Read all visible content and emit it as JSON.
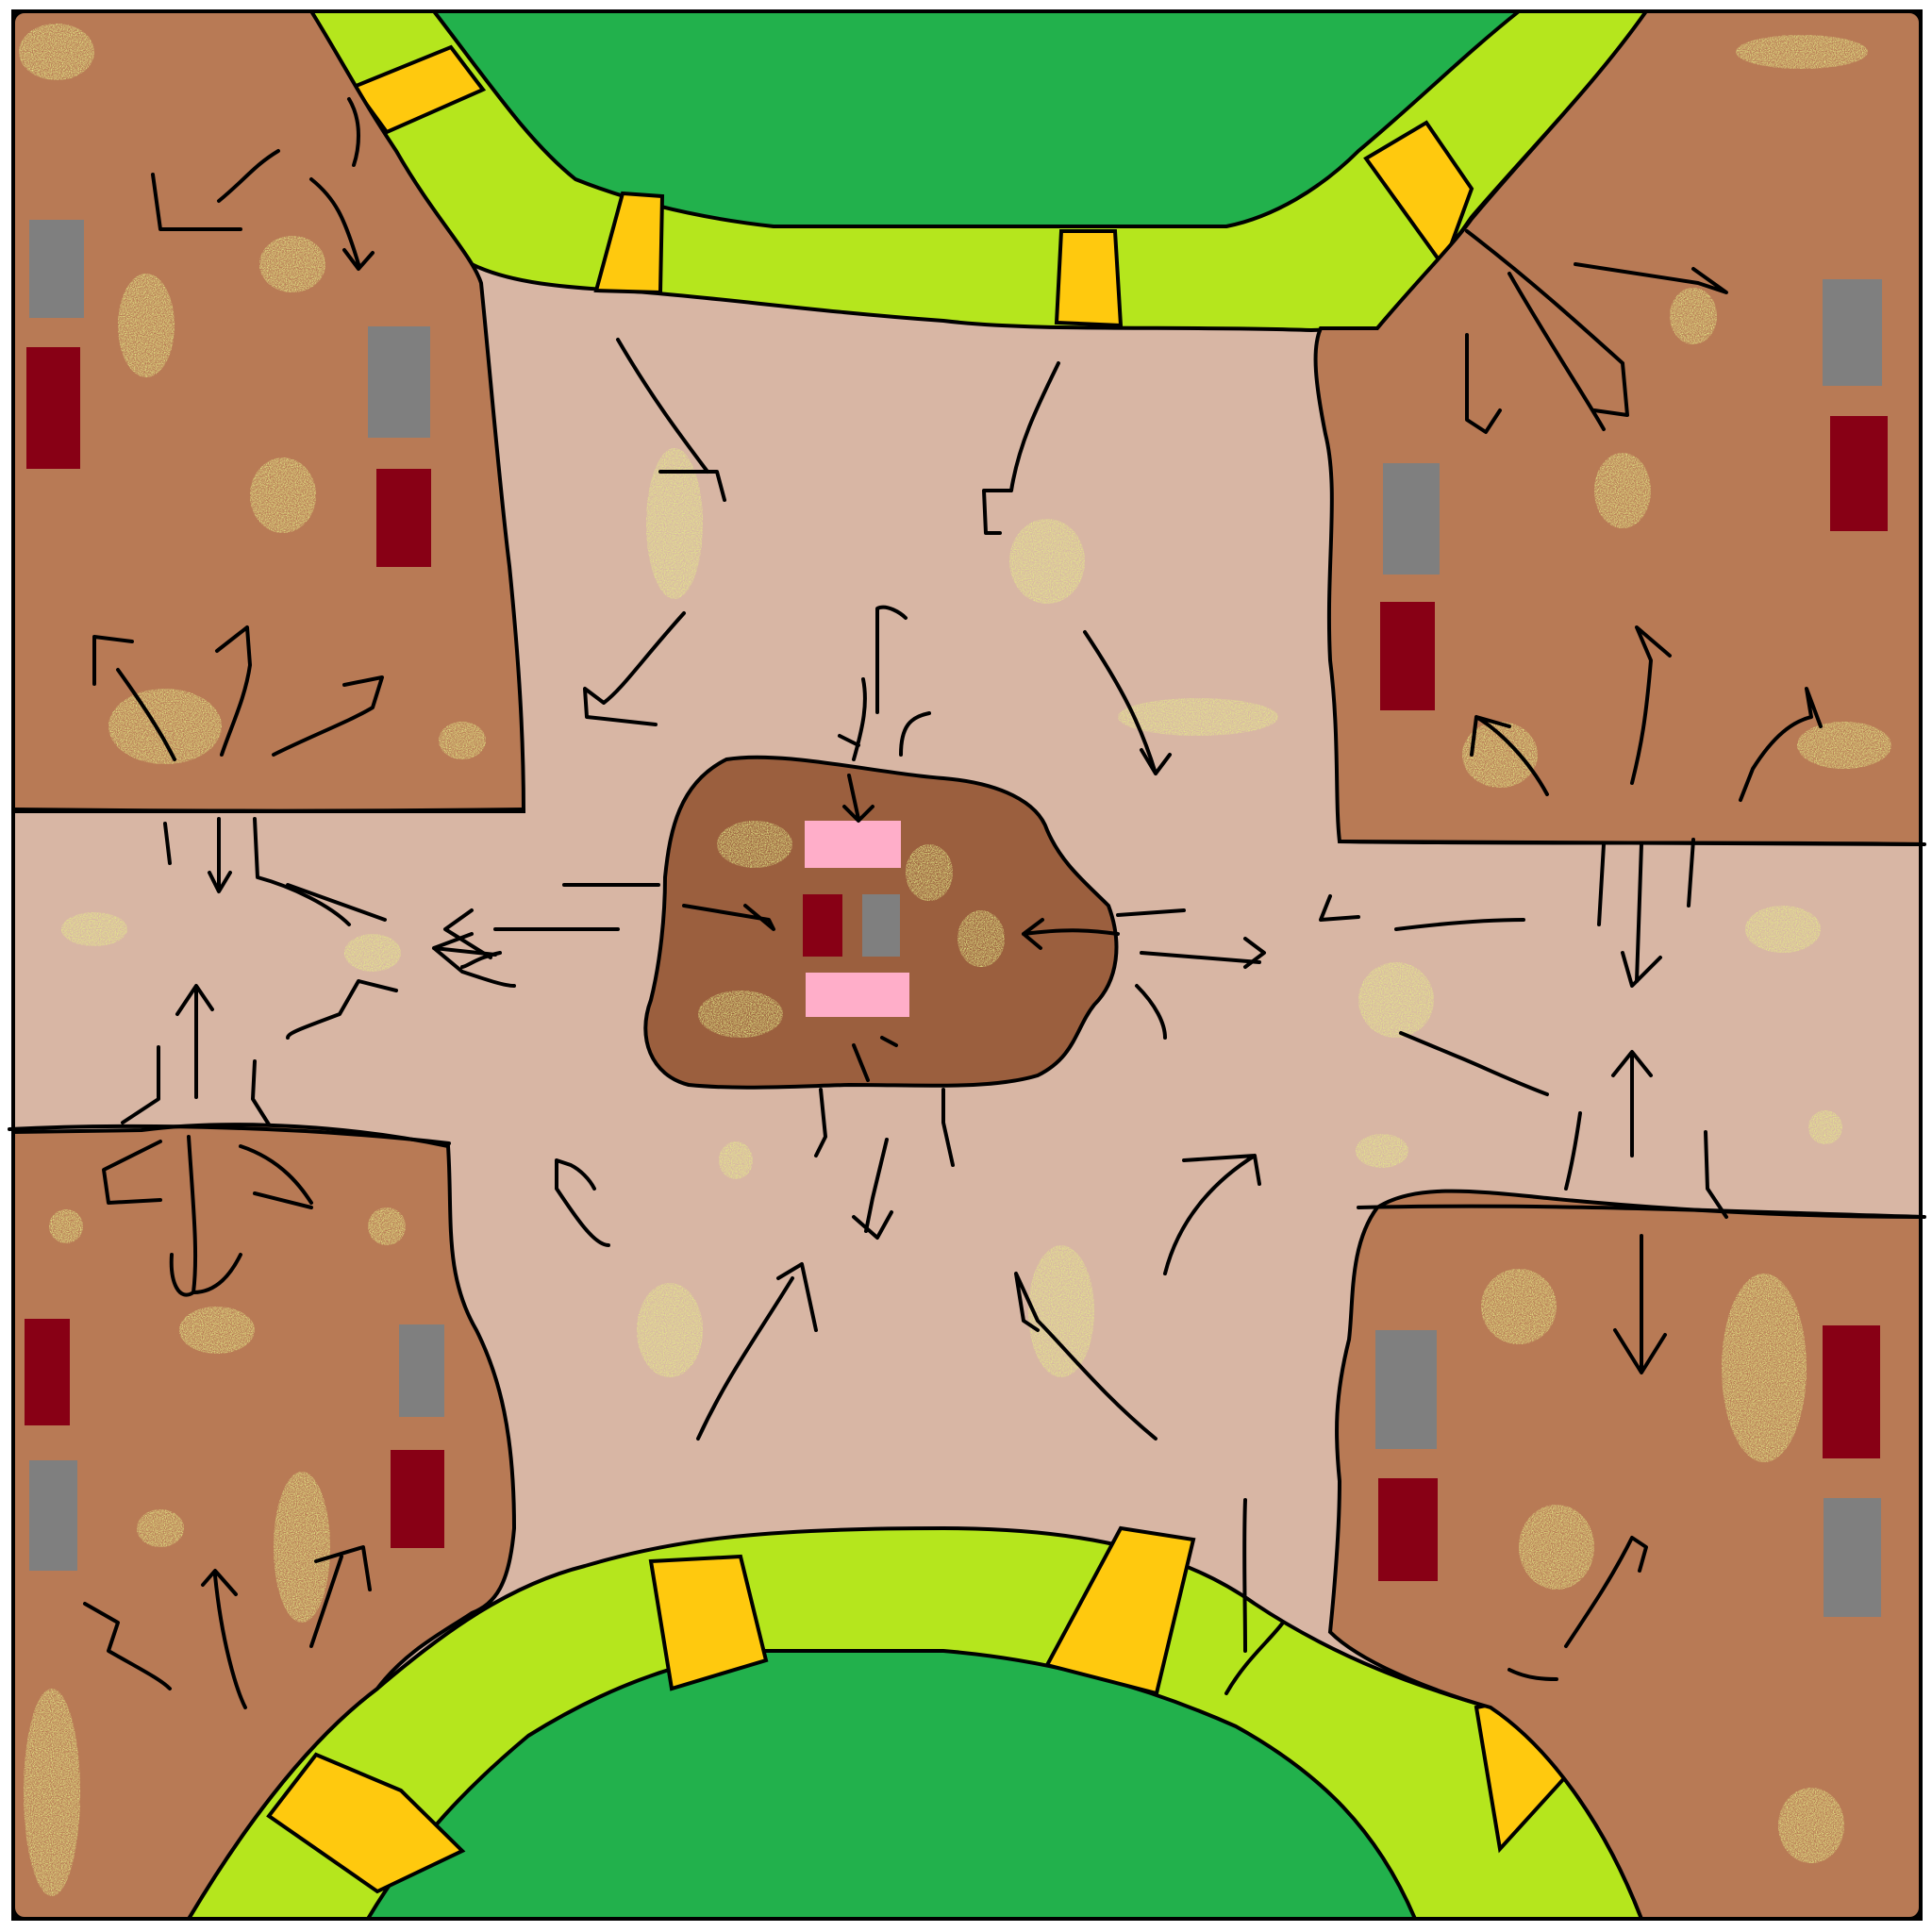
{
  "map": {
    "colors": {
      "border": "#000000",
      "high_ground": "#b87a55",
      "plains": "#d8b6a4",
      "center_mound": "#9b5f3e",
      "lake": "#22b14c",
      "riverbank": "#b5e61d",
      "bridge": "#ffc90e",
      "grass_patch": "#c8d640",
      "structure_red": "#880015",
      "structure_gray": "#7f7f7f",
      "structure_pink": "#ffaec9",
      "arrow": "#000000"
    },
    "regions": [
      {
        "name": "high-ground-nw",
        "kind": "high_ground"
      },
      {
        "name": "high-ground-ne",
        "kind": "high_ground"
      },
      {
        "name": "high-ground-sw",
        "kind": "high_ground"
      },
      {
        "name": "high-ground-se",
        "kind": "high_ground"
      },
      {
        "name": "center-mound",
        "kind": "center_mound"
      },
      {
        "name": "lake-north",
        "kind": "lake"
      },
      {
        "name": "lake-south",
        "kind": "lake"
      },
      {
        "name": "riverbank-north",
        "kind": "riverbank"
      },
      {
        "name": "riverbank-south",
        "kind": "riverbank"
      }
    ],
    "legend_text": []
  }
}
